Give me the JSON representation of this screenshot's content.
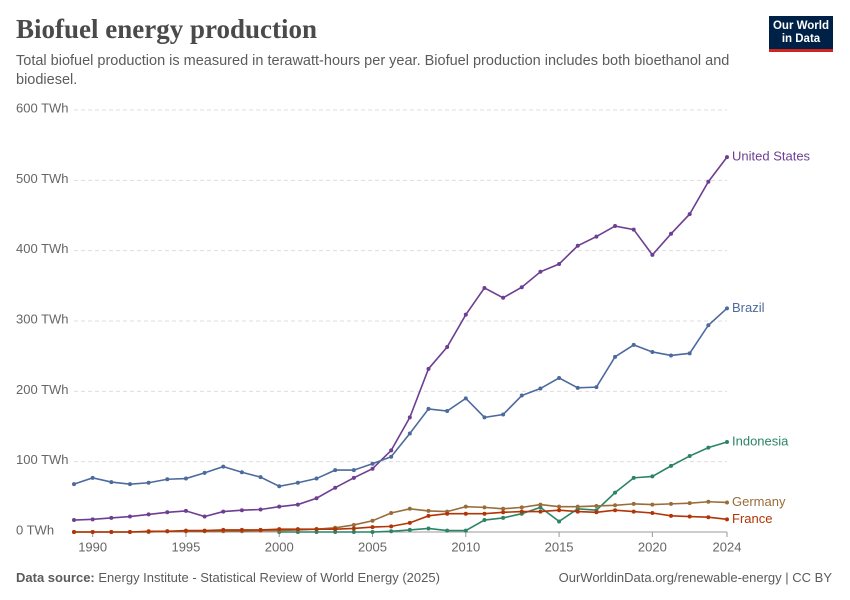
{
  "logo": [
    "Our World",
    "in Data"
  ],
  "footer": {
    "source_label": "Data source:",
    "source": "Energy Institute - Statistical Review of World Energy (2025)",
    "url_license": "OurWorldinData.org/renewable-energy | CC BY"
  },
  "chart_data": {
    "type": "line",
    "title": "Biofuel energy production",
    "subtitle": "Total biofuel production is measured in terawatt-hours per year. Biofuel production includes both bioethanol and biodiesel.",
    "x": [
      1989,
      1990,
      1991,
      1992,
      1993,
      1994,
      1995,
      1996,
      1997,
      1998,
      1999,
      2000,
      2001,
      2002,
      2003,
      2004,
      2005,
      2006,
      2007,
      2008,
      2009,
      2010,
      2011,
      2012,
      2013,
      2014,
      2015,
      2016,
      2017,
      2018,
      2019,
      2020,
      2021,
      2022,
      2023,
      2024
    ],
    "xlim": [
      1989,
      2024
    ],
    "xticks": [
      1990,
      1995,
      2000,
      2005,
      2010,
      2015,
      2020,
      2024
    ],
    "ylim": [
      0,
      600
    ],
    "yticks": [
      {
        "value": 0,
        "label": "0 TWh"
      },
      {
        "value": 100,
        "label": "100 TWh"
      },
      {
        "value": 200,
        "label": "200 TWh"
      },
      {
        "value": 300,
        "label": "300 TWh"
      },
      {
        "value": 400,
        "label": "400 TWh"
      },
      {
        "value": 500,
        "label": "500 TWh"
      },
      {
        "value": 600,
        "label": "600 TWh"
      }
    ],
    "grid": true,
    "series": [
      {
        "name": "United States",
        "color": "#6d3e91",
        "values": [
          17,
          18,
          20,
          22,
          25,
          28,
          30,
          22,
          29,
          31,
          32,
          36,
          39,
          48,
          63,
          77,
          90,
          116,
          163,
          232,
          263,
          309,
          347,
          333,
          348,
          370,
          381,
          407,
          420,
          435,
          430,
          394,
          424,
          452,
          498,
          533
        ]
      },
      {
        "name": "Brazil",
        "color": "#4c6a9c",
        "values": [
          68,
          77,
          71,
          68,
          70,
          75,
          76,
          84,
          93,
          85,
          78,
          65,
          70,
          76,
          88,
          88,
          97,
          107,
          140,
          175,
          172,
          190,
          163,
          167,
          194,
          204,
          219,
          205,
          206,
          249,
          266,
          256,
          251,
          254,
          294,
          318
        ]
      },
      {
        "name": "Indonesia",
        "color": "#2c8465",
        "values": [
          null,
          null,
          null,
          null,
          null,
          null,
          null,
          null,
          null,
          null,
          null,
          0,
          0,
          0,
          0,
          0,
          0,
          1,
          3,
          5,
          2,
          2,
          17,
          20,
          26,
          35,
          15,
          33,
          31,
          56,
          77,
          79,
          94,
          108,
          120,
          128
        ]
      },
      {
        "name": "Germany",
        "color": "#996d39",
        "values": [
          0,
          0,
          0,
          0,
          0,
          1,
          1,
          1,
          1,
          1,
          2,
          2,
          3,
          4,
          6,
          10,
          16,
          27,
          33,
          30,
          29,
          36,
          35,
          33,
          35,
          39,
          36,
          36,
          37,
          38,
          40,
          39,
          40,
          41,
          43,
          42
        ]
      },
      {
        "name": "France",
        "color": "#b13507",
        "values": [
          0,
          0,
          0,
          0,
          1,
          1,
          2,
          2,
          3,
          3,
          3,
          4,
          4,
          4,
          4,
          5,
          7,
          8,
          13,
          23,
          26,
          26,
          26,
          28,
          29,
          29,
          31,
          29,
          28,
          31,
          29,
          27,
          23,
          22,
          21,
          18
        ]
      }
    ]
  }
}
